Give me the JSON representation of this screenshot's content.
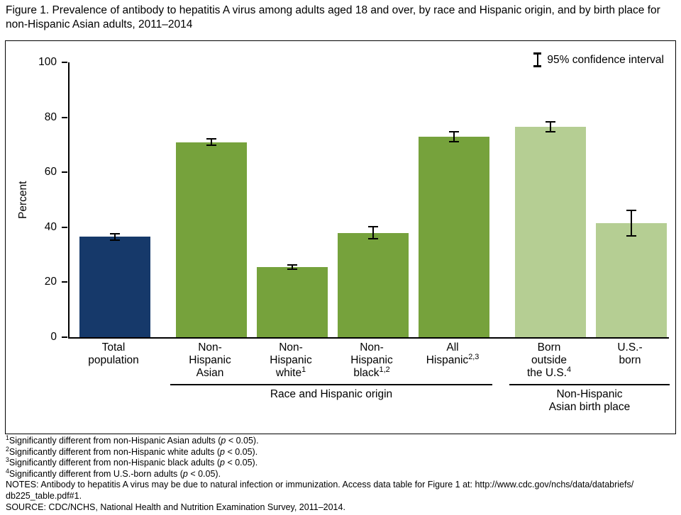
{
  "figure": {
    "title": "Figure 1. Prevalence of antibody to hepatitis A virus among adults aged 18 and over, by race and Hispanic origin, and by birth place for non-Hispanic Asian adults, 2011–2014"
  },
  "colors": {
    "navy": "#16396a",
    "green": "#76a23c",
    "light_green": "#b5ce93",
    "axis": "#000000"
  },
  "chart_data": {
    "type": "bar",
    "title": "Figure 1. Prevalence of antibody to hepatitis A virus among adults aged 18 and over, by race and Hispanic origin, and by birth place for non-Hispanic Asian adults, 2011–2014",
    "xlabel": "",
    "ylabel": "Percent",
    "ylim": [
      0,
      100
    ],
    "yticks": [
      0,
      20,
      40,
      60,
      80,
      100
    ],
    "grid": false,
    "legend": "95% confidence interval",
    "legend_position": "top-right",
    "categories": [
      "Total population",
      "Non-Hispanic Asian",
      "Non-Hispanic white¹",
      "Non-Hispanic black¹²",
      "All Hispanic²³",
      "Born outside the U.S.⁴",
      "U.S.-born"
    ],
    "values": [
      36.5,
      71,
      25.5,
      38,
      73,
      76.5,
      41.5
    ],
    "ci_half_width": [
      1.5,
      1.5,
      1,
      2.5,
      2,
      2,
      5
    ],
    "bars": [
      {
        "label_lines": [
          "Total",
          "population"
        ],
        "value": 36.5,
        "ci": 1.5,
        "color": "navy"
      },
      {
        "label_lines": [
          "Non-",
          "Hispanic",
          "Asian"
        ],
        "value": 71,
        "ci": 1.5,
        "color": "green"
      },
      {
        "label_lines": [
          "Non-",
          "Hispanic",
          "white^{1}"
        ],
        "value": 25.5,
        "ci": 1.0,
        "color": "green"
      },
      {
        "label_lines": [
          "Non-",
          "Hispanic",
          "black^{1,2}"
        ],
        "value": 38,
        "ci": 2.5,
        "color": "green"
      },
      {
        "label_lines": [
          "All",
          "Hispanic^{2,3}"
        ],
        "value": 73,
        "ci": 2.0,
        "color": "green"
      },
      {
        "label_lines": [
          "Born",
          "outside",
          "the U.S.^{4}"
        ],
        "value": 76.5,
        "ci": 2.0,
        "color": "light_green"
      },
      {
        "label_lines": [
          "U.S.-",
          "born"
        ],
        "value": 41.5,
        "ci": 5.0,
        "color": "light_green"
      }
    ],
    "groups": [
      {
        "label_lines": [
          "Race and Hispanic origin"
        ],
        "from": 1,
        "to": 4
      },
      {
        "label_lines": [
          "Non-Hispanic",
          "Asian birth place"
        ],
        "from": 5,
        "to": 6
      }
    ]
  },
  "footnotes": [
    "^{1}Significantly different from non-Hispanic Asian adults (*p* < 0.05).",
    "^{2}Significantly different from non-Hispanic white adults (*p* < 0.05).",
    "^{3}Significantly different from non-Hispanic black adults (*p* < 0.05).",
    "^{4}Significantly different from U.S.-born adults (*p* < 0.05).",
    "NOTES: Antibody to hepatitis A virus may be due to natural infection or immunization. Access data table for Figure 1 at: http://www.cdc.gov/nchs/data/databriefs/",
    "db225_table.pdf#1.",
    "SOURCE: CDC/NCHS, National Health and Nutrition Examination Survey, 2011–2014."
  ]
}
